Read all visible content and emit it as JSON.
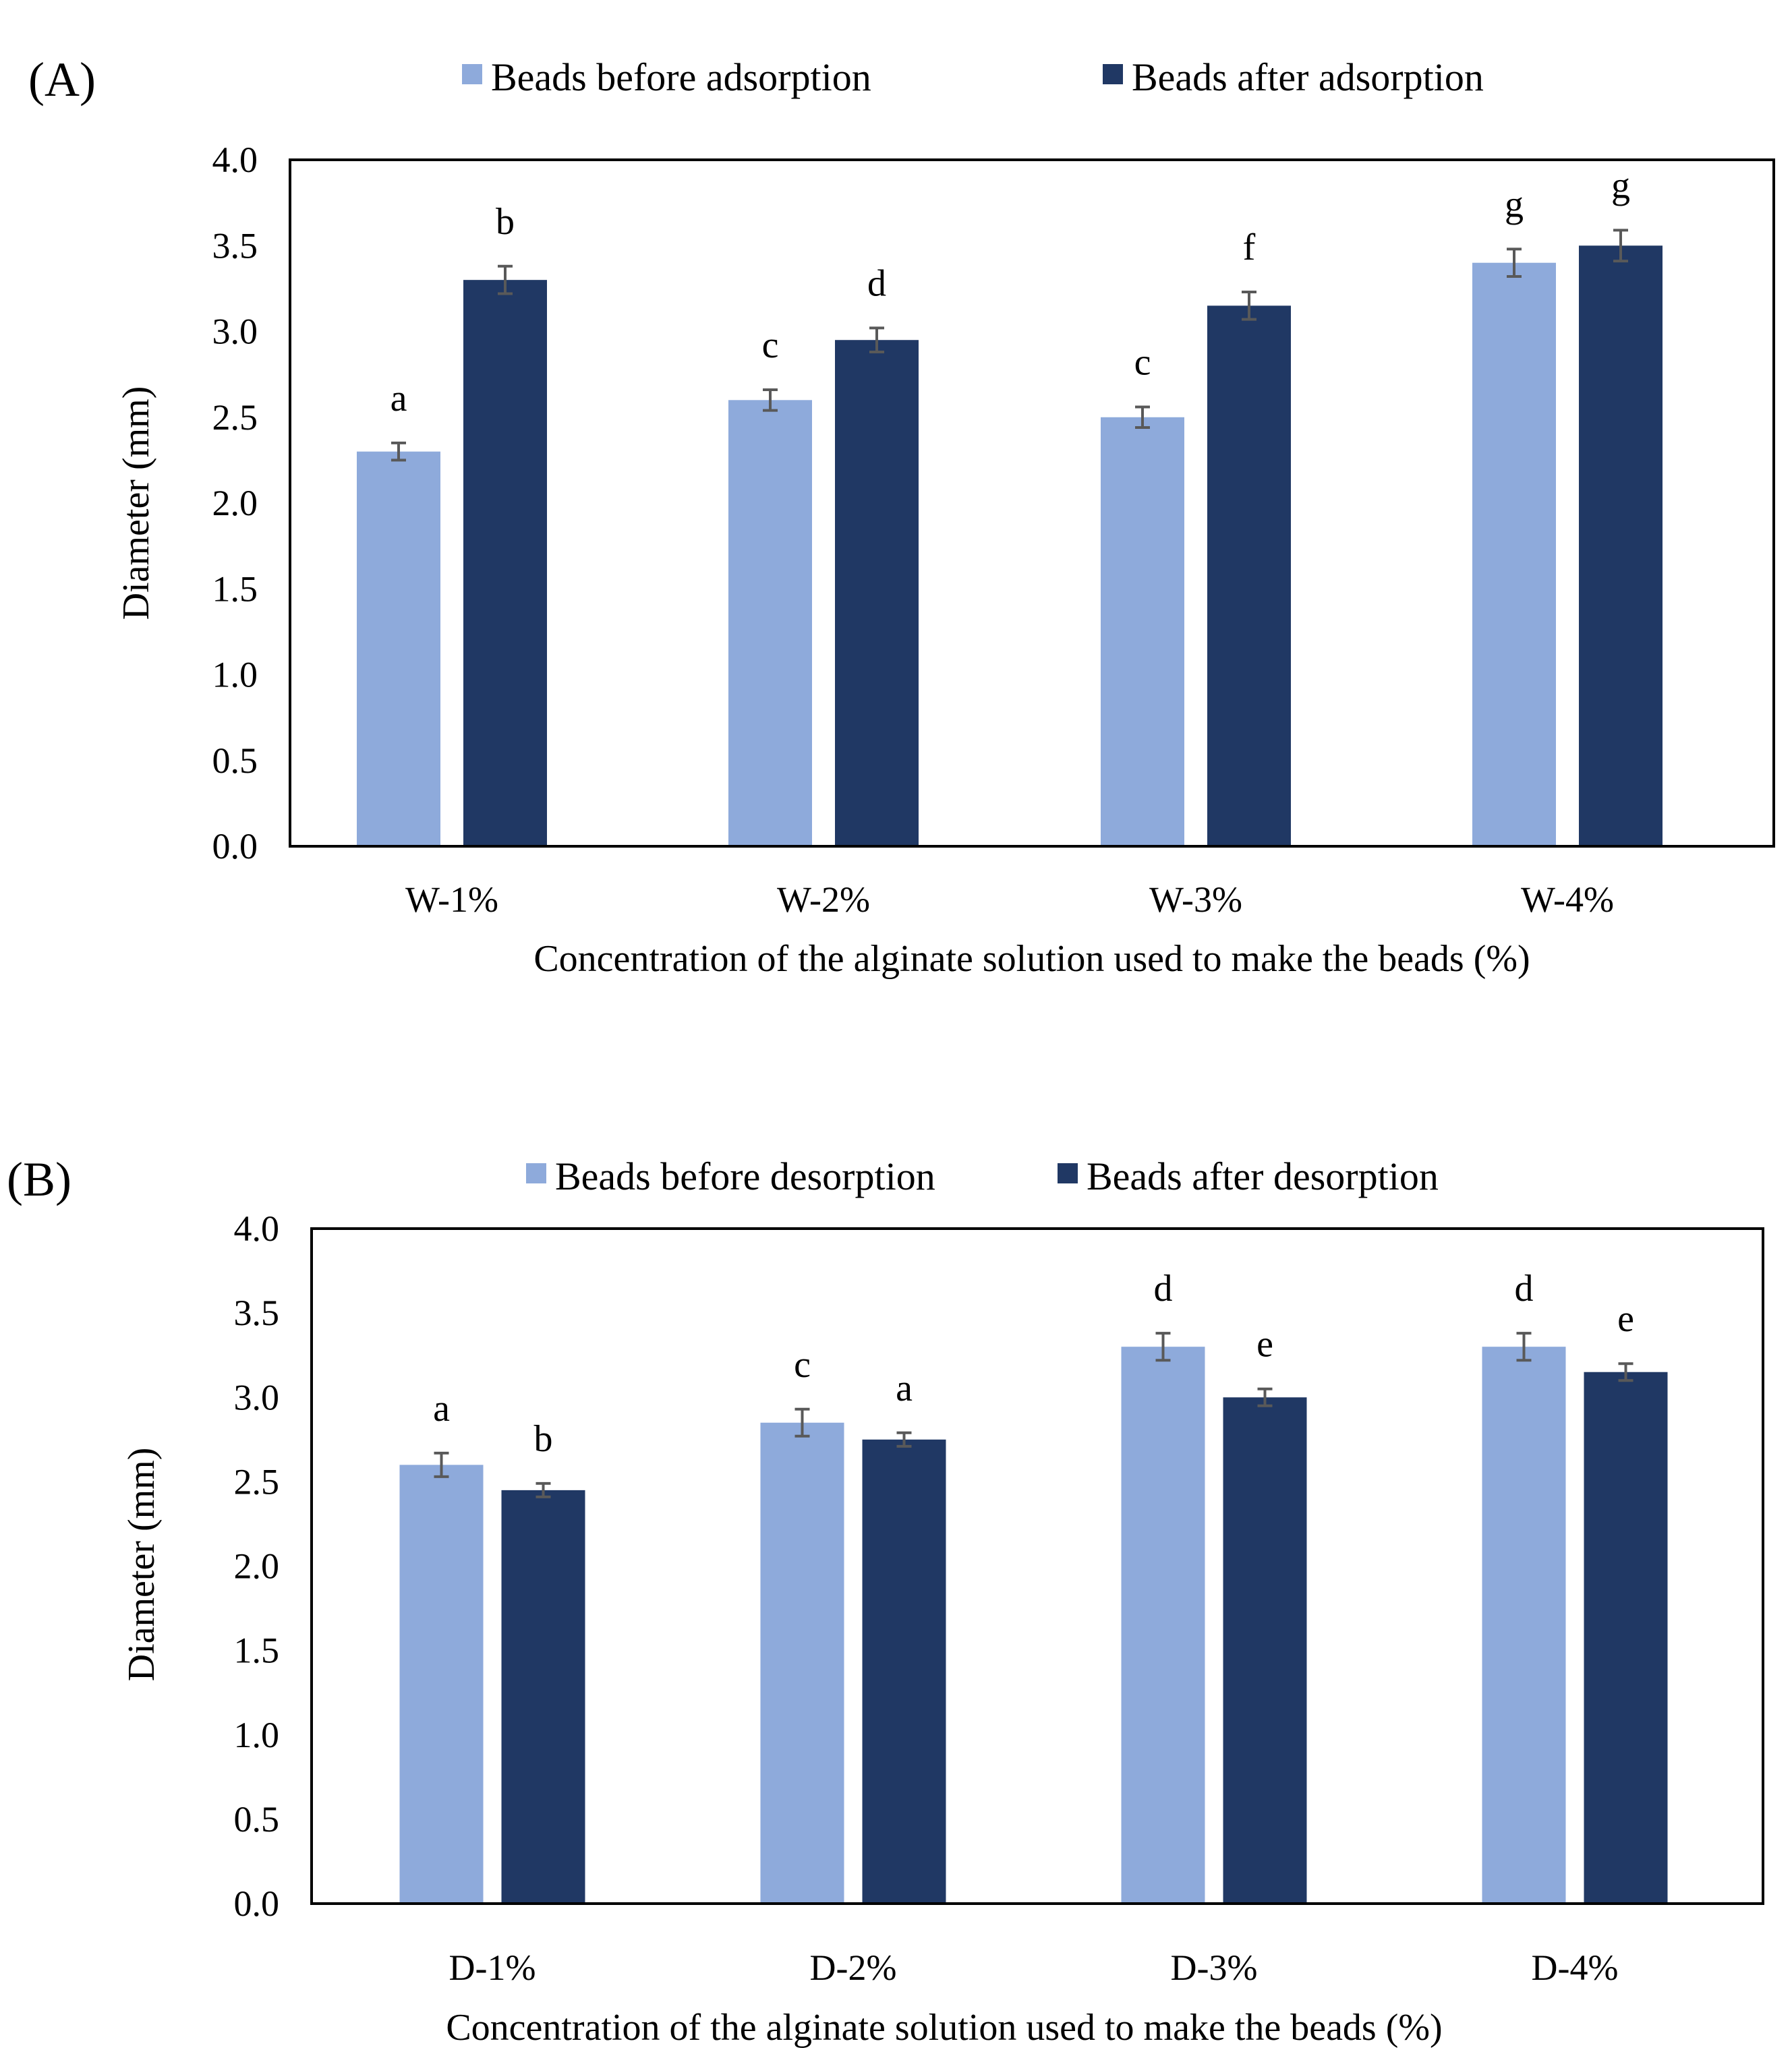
{
  "colors": {
    "before": "#8eaadb",
    "after": "#203864",
    "error_bar": "#595959",
    "frame": "#000000"
  },
  "chart_data": [
    {
      "id": "A",
      "type": "bar",
      "panel_label": "(A)",
      "ylabel": "Diameter (mm)",
      "xlabel": "Concentration of the alginate solution used to make the beads (%)",
      "ylim": [
        0,
        4.0
      ],
      "yticks": [
        0.0,
        0.5,
        1.0,
        1.5,
        2.0,
        2.5,
        3.0,
        3.5,
        4.0
      ],
      "ytick_labels": [
        "0.0",
        "0.5",
        "1.0",
        "1.5",
        "2.0",
        "2.5",
        "3.0",
        "3.5",
        "4.0"
      ],
      "grid": false,
      "legend_position": "top-center",
      "categories": [
        "W-1%",
        "W-2%",
        "W-3%",
        "W-4%"
      ],
      "series": [
        {
          "name": "Beads before adsorption",
          "color_key": "before",
          "values": [
            2.3,
            2.6,
            2.5,
            3.4
          ],
          "errors": [
            0.05,
            0.06,
            0.06,
            0.08
          ],
          "labels": [
            "a",
            "c",
            "c",
            "g"
          ]
        },
        {
          "name": "Beads after adsorption",
          "color_key": "after",
          "values": [
            3.3,
            2.95,
            3.15,
            3.5
          ],
          "errors": [
            0.08,
            0.07,
            0.08,
            0.09
          ],
          "labels": [
            "b",
            "d",
            "f",
            "g"
          ]
        }
      ]
    },
    {
      "id": "B",
      "type": "bar",
      "panel_label": "(B)",
      "ylabel": "Diameter (mm)",
      "xlabel": "Concentration of the alginate solution used to make the beads (%)",
      "ylim": [
        0,
        4.0
      ],
      "yticks": [
        0.0,
        0.5,
        1.0,
        1.5,
        2.0,
        2.5,
        3.0,
        3.5,
        4.0
      ],
      "ytick_labels": [
        "0.0",
        "0.5",
        "1.0",
        "1.5",
        "2.0",
        "2.5",
        "3.0",
        "3.5",
        "4.0"
      ],
      "grid": false,
      "legend_position": "top-center",
      "categories": [
        "D-1%",
        "D-2%",
        "D-3%",
        "D-4%"
      ],
      "series": [
        {
          "name": "Beads before desorption",
          "color_key": "before",
          "values": [
            2.6,
            2.85,
            3.3,
            3.3
          ],
          "errors": [
            0.07,
            0.08,
            0.08,
            0.08
          ],
          "labels": [
            "a",
            "c",
            "d",
            "d"
          ]
        },
        {
          "name": "Beads after desorption",
          "color_key": "after",
          "values": [
            2.45,
            2.75,
            3.0,
            3.15
          ],
          "errors": [
            0.04,
            0.04,
            0.05,
            0.05
          ],
          "labels": [
            "b",
            "a",
            "e",
            "e"
          ]
        }
      ]
    }
  ]
}
